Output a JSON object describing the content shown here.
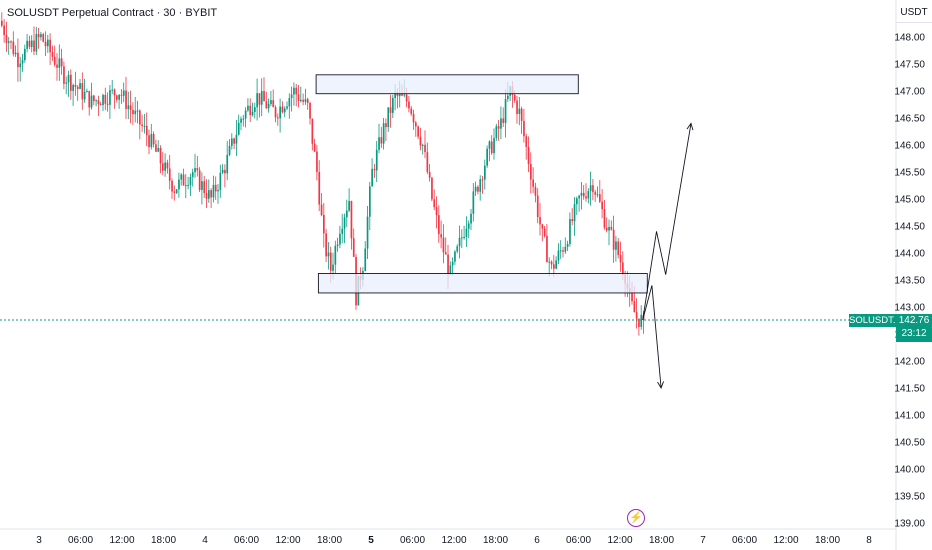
{
  "header": {
    "title": "SOLUSDT Perpetual Contract · 30 · BYBIT",
    "currency": "USDT"
  },
  "price_badge": {
    "symbol": "SOLUSDT.P",
    "price": "142.76",
    "countdown": "23:12"
  },
  "event_icon": "lightning-icon",
  "colors": {
    "up": "#089981",
    "down": "#f23645",
    "box_fill": "#e8effd",
    "box_border": "#131722"
  },
  "chart_data": {
    "type": "candlestick",
    "title": "SOLUSDT Perpetual Contract · 30 · BYBIT",
    "ylim": [
      139.0,
      148.6
    ],
    "y_ticks": [
      "148.00",
      "147.50",
      "147.00",
      "146.50",
      "146.00",
      "145.50",
      "145.00",
      "144.50",
      "144.00",
      "143.50",
      "143.00",
      "142.50",
      "142.00",
      "141.50",
      "141.00",
      "140.50",
      "140.00",
      "139.50",
      "139.00"
    ],
    "x_ticks": [
      {
        "label": "3",
        "bold": false
      },
      {
        "label": "06:00",
        "bold": false
      },
      {
        "label": "12:00",
        "bold": false
      },
      {
        "label": "18:00",
        "bold": false
      },
      {
        "label": "4",
        "bold": false
      },
      {
        "label": "06:00",
        "bold": false
      },
      {
        "label": "12:00",
        "bold": false
      },
      {
        "label": "18:00",
        "bold": false
      },
      {
        "label": "5",
        "bold": true
      },
      {
        "label": "06:00",
        "bold": false
      },
      {
        "label": "12:00",
        "bold": false
      },
      {
        "label": "18:00",
        "bold": false
      },
      {
        "label": "6",
        "bold": false
      },
      {
        "label": "06:00",
        "bold": false
      },
      {
        "label": "12:00",
        "bold": false
      },
      {
        "label": "18:00",
        "bold": false
      },
      {
        "label": "7",
        "bold": false
      },
      {
        "label": "06:00",
        "bold": false
      },
      {
        "label": "12:00",
        "bold": false
      },
      {
        "label": "18:00",
        "bold": false
      },
      {
        "label": "8",
        "bold": false
      }
    ],
    "current_price": 142.76,
    "anchors": [
      [
        0,
        148.3
      ],
      [
        8,
        147.6
      ],
      [
        18,
        148.0
      ],
      [
        28,
        147.3
      ],
      [
        40,
        146.8
      ],
      [
        52,
        147.0
      ],
      [
        64,
        146.2
      ],
      [
        76,
        145.2
      ],
      [
        84,
        145.5
      ],
      [
        92,
        145.0
      ],
      [
        98,
        145.6
      ],
      [
        105,
        146.5
      ],
      [
        112,
        146.9
      ],
      [
        120,
        146.6
      ],
      [
        128,
        147.0
      ],
      [
        134,
        146.7
      ],
      [
        138,
        145.5
      ],
      [
        141,
        144.2
      ],
      [
        144,
        143.7
      ],
      [
        148,
        144.5
      ],
      [
        152,
        145.0
      ],
      [
        155,
        143.2
      ],
      [
        158,
        143.8
      ],
      [
        162,
        145.5
      ],
      [
        167,
        146.3
      ],
      [
        172,
        146.9
      ],
      [
        178,
        146.8
      ],
      [
        184,
        146.0
      ],
      [
        188,
        145.0
      ],
      [
        192,
        144.2
      ],
      [
        196,
        143.6
      ],
      [
        201,
        144.3
      ],
      [
        206,
        145.0
      ],
      [
        212,
        145.8
      ],
      [
        218,
        146.4
      ],
      [
        222,
        147.0
      ],
      [
        226,
        146.6
      ],
      [
        231,
        145.5
      ],
      [
        236,
        144.3
      ],
      [
        240,
        143.7
      ],
      [
        246,
        144.2
      ],
      [
        252,
        145.0
      ],
      [
        258,
        145.3
      ],
      [
        264,
        144.5
      ],
      [
        268,
        144.1
      ],
      [
        272,
        143.6
      ],
      [
        274,
        143.1
      ],
      [
        277,
        142.8
      ],
      [
        279,
        142.76
      ]
    ],
    "zones": [
      {
        "name": "resistance",
        "y_top": 147.3,
        "y_bottom": 146.95,
        "x_start": 137,
        "x_end": 251
      },
      {
        "name": "support",
        "y_top": 143.62,
        "y_bottom": 143.26,
        "x_start": 138,
        "x_end": 281
      }
    ],
    "projection_up": [
      [
        279,
        142.76
      ],
      [
        285,
        144.4
      ],
      [
        289,
        143.6
      ],
      [
        300,
        146.4
      ]
    ],
    "projection_down": [
      [
        279,
        142.76
      ],
      [
        283,
        143.4
      ],
      [
        287,
        141.5
      ]
    ]
  }
}
